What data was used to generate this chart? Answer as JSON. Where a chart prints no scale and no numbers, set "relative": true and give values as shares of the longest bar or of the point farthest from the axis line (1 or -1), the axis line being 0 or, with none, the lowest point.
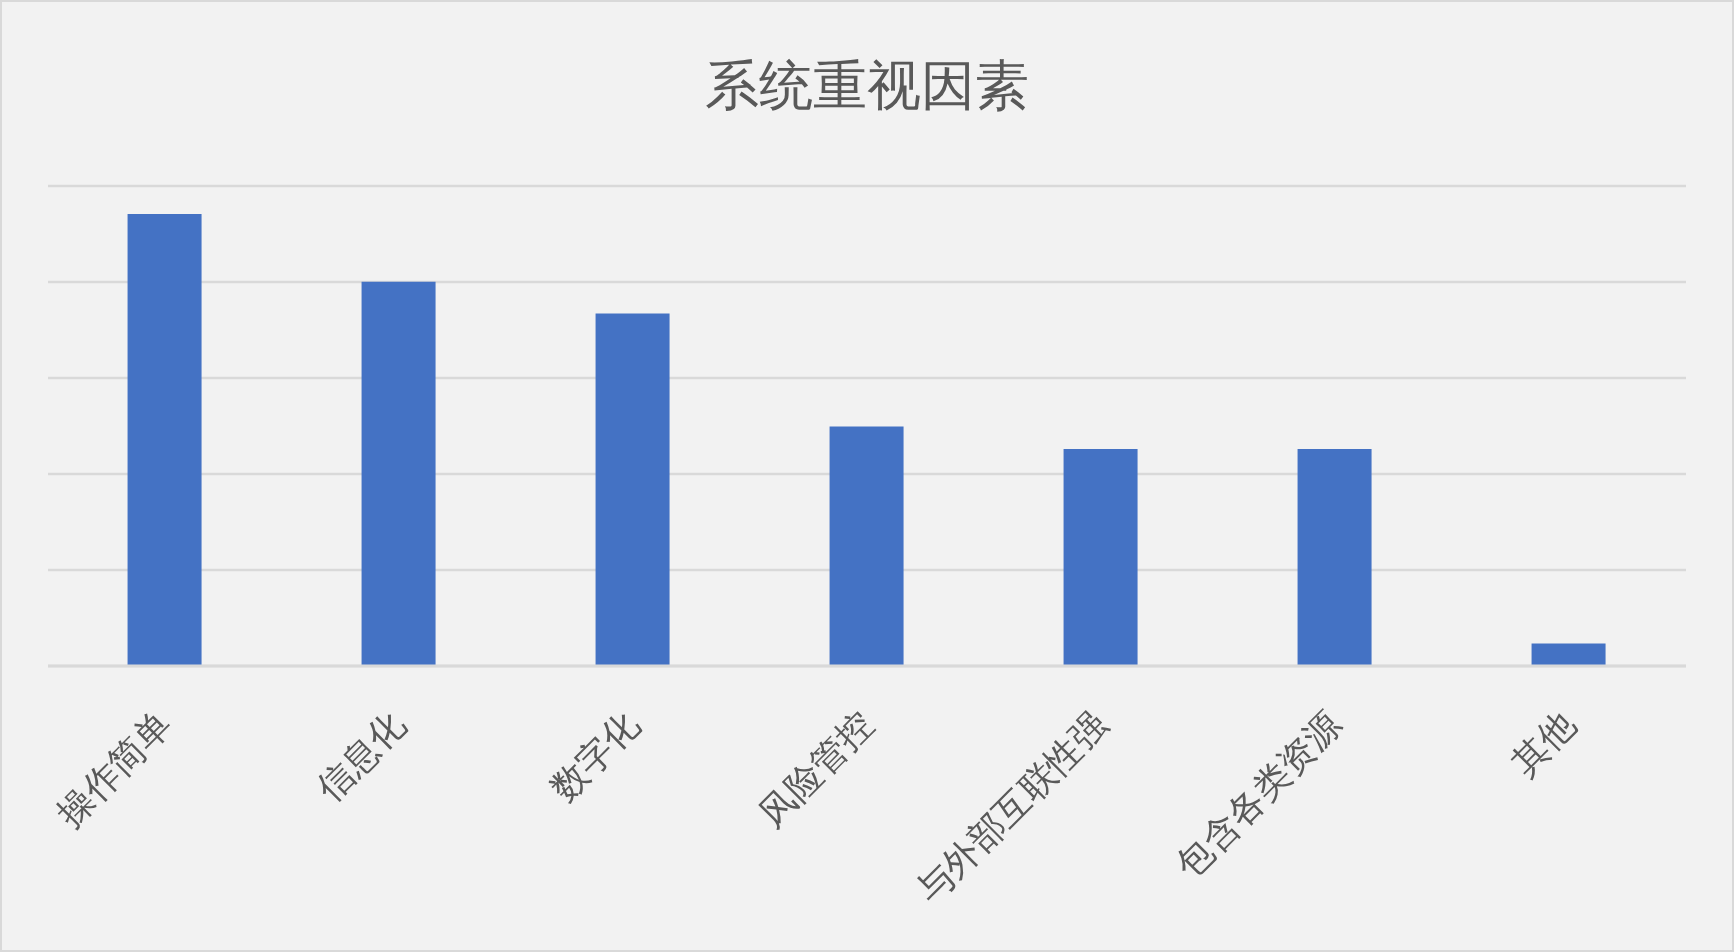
{
  "chart_data": {
    "type": "bar",
    "title": "系统重视因素",
    "categories": [
      "操作简单",
      "信息化",
      "数字化",
      "风险管控",
      "与外部互联性强",
      "包含各类资源",
      "其他"
    ],
    "values": [
      1,
      0.85,
      0.78,
      0.53,
      0.48,
      0.48,
      0.05
    ],
    "color": "#4472c4",
    "relative": true,
    "grid": "y"
  }
}
